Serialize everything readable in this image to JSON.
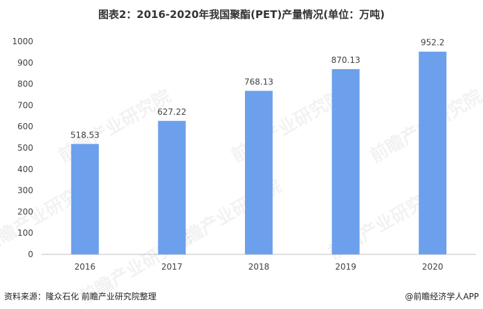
{
  "title": "图表2：2016-2020年我国聚酯(PET)产量情况(单位：万吨)",
  "footer": {
    "source": "资料来源：隆众石化 前瞻产业研究院整理",
    "brand": "@前瞻经济学人APP"
  },
  "watermark": "前瞻产业研究院",
  "colors": {
    "bar": "#6CA0EC",
    "axis": "#BFBFBF",
    "text": "#404040"
  },
  "chart_data": {
    "type": "bar",
    "title": "图表2：2016-2020年我国聚酯(PET)产量情况(单位：万吨)",
    "categories": [
      "2016",
      "2017",
      "2018",
      "2019",
      "2020"
    ],
    "values": [
      518.53,
      627.22,
      768.13,
      870.13,
      952.2
    ],
    "data_labels": [
      "518.53",
      "627.22",
      "768.13",
      "870.13",
      "952.2"
    ],
    "y_ticks": [
      0,
      100,
      200,
      300,
      400,
      500,
      600,
      700,
      800,
      900,
      1000
    ],
    "ylim": [
      0,
      1000
    ],
    "xlabel": "",
    "ylabel": "",
    "grid": false,
    "legend": "none"
  }
}
